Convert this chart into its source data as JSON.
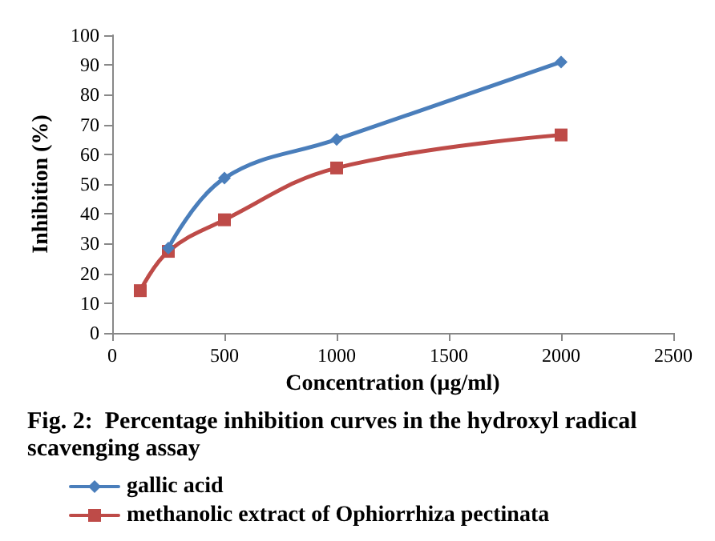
{
  "chart_data": {
    "type": "line",
    "title": "Fig. 2:  Percentage inhibition curves in the hydroxyl radical scavenging assay",
    "xlabel": "Concentration (µg/ml)",
    "ylabel": "Inhibition (%)",
    "series": [
      {
        "name": "gallic acid",
        "color": "#4a7ebb",
        "marker": "diamond",
        "x": [
          250,
          500,
          1000,
          2000
        ],
        "values": [
          28.5,
          52,
          65,
          91
        ]
      },
      {
        "name": "methanolic extract of Ophiorrhiza pectinata",
        "color": "#be4b48",
        "marker": "square",
        "x": [
          125,
          250,
          500,
          1000,
          2000
        ],
        "values": [
          14.2,
          27.4,
          38,
          55.4,
          66.5
        ]
      }
    ],
    "xlim": [
      0,
      2500
    ],
    "xticks": [
      0,
      500,
      1000,
      1500,
      2000,
      2500
    ],
    "ylim": [
      0,
      100
    ],
    "yticks": [
      0,
      10,
      20,
      30,
      40,
      50,
      60,
      70,
      80,
      90,
      100
    ],
    "grid": false,
    "legend": "bottom",
    "line_style": "solid"
  }
}
